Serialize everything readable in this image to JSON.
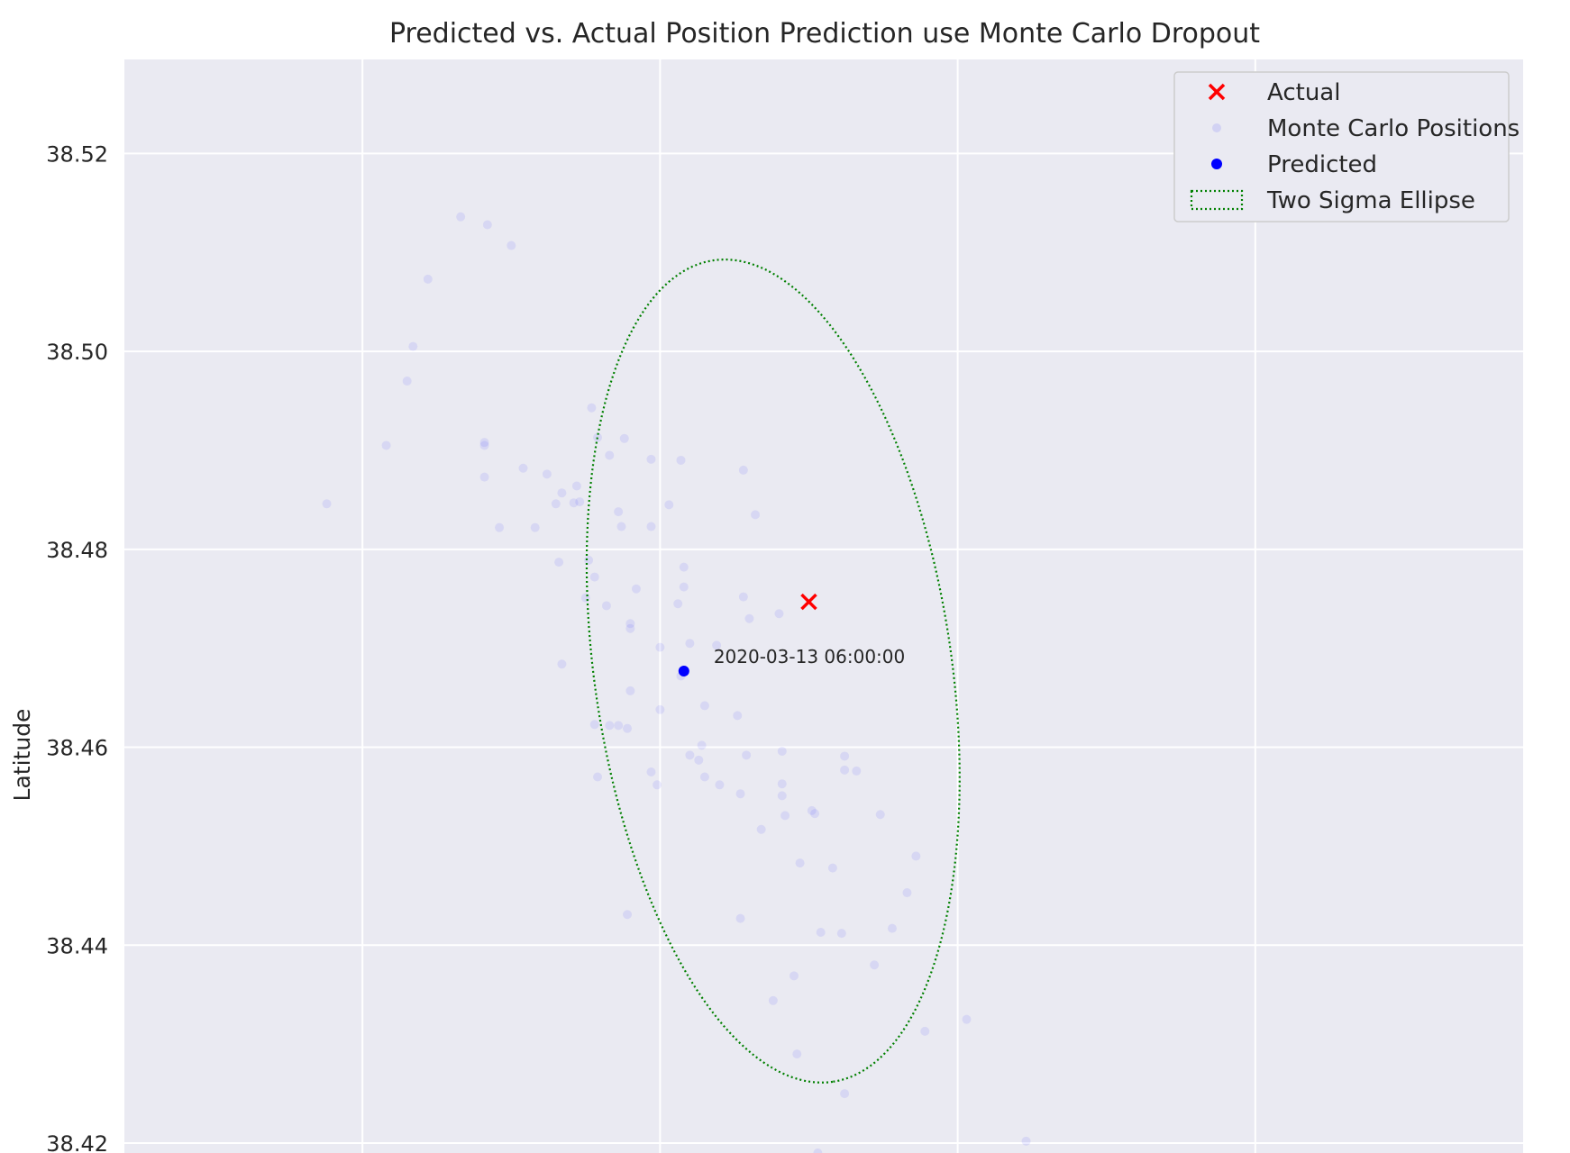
{
  "chart_data": {
    "type": "scatter",
    "title": "Predicted vs. Actual Position Prediction use Monte Carlo Dropout",
    "xlabel": "",
    "ylabel": "Latitude",
    "xlim": [
      -4.0,
      0.7
    ],
    "ylim": [
      38.419,
      38.5295
    ],
    "yticks": [
      38.42,
      38.44,
      38.46,
      38.48,
      38.5,
      38.52
    ],
    "ytick_labels": [
      "38.42",
      "38.44",
      "38.46",
      "38.48",
      "38.50",
      "38.52"
    ],
    "xgrid": [
      -3.2,
      -2.2,
      -1.2,
      -0.2
    ],
    "grid": true,
    "legend_position": "top-right",
    "colors": {
      "background": "#eaeaf2",
      "grid": "#ffffff",
      "actual": "#ff0000",
      "predicted": "#0000ff",
      "monte_carlo": "#0000ff",
      "ellipse": "#008000"
    },
    "series": [
      {
        "name": "Actual",
        "marker": "x",
        "points": [
          [
            -1.7,
            38.4747
          ]
        ]
      },
      {
        "name": "Monte Carlo Positions",
        "marker": "dot-faint",
        "points": [
          [
            -3.32,
            38.4846
          ],
          [
            -3.12,
            38.4905
          ],
          [
            -3.03,
            38.5005
          ],
          [
            -3.05,
            38.497
          ],
          [
            -2.98,
            38.5073
          ],
          [
            -2.87,
            38.5136
          ],
          [
            -2.79,
            38.4908
          ],
          [
            -2.79,
            38.4873
          ],
          [
            -2.79,
            38.4905
          ],
          [
            -2.74,
            38.4822
          ],
          [
            -2.7,
            38.5107
          ],
          [
            -2.66,
            38.4882
          ],
          [
            -2.62,
            38.4822
          ],
          [
            -2.78,
            38.5128
          ],
          [
            -2.58,
            38.4876
          ],
          [
            -2.55,
            38.4846
          ],
          [
            -2.53,
            38.4857
          ],
          [
            -2.49,
            38.4847
          ],
          [
            -2.48,
            38.4864
          ],
          [
            -2.47,
            38.4848
          ],
          [
            -2.45,
            38.4751
          ],
          [
            -2.44,
            38.4789
          ],
          [
            -2.43,
            38.4943
          ],
          [
            -2.42,
            38.4772
          ],
          [
            -2.41,
            38.4913
          ],
          [
            -2.38,
            38.4743
          ],
          [
            -2.37,
            38.4895
          ],
          [
            -2.34,
            38.4838
          ],
          [
            -2.33,
            38.4823
          ],
          [
            -2.32,
            38.4912
          ],
          [
            -2.3,
            38.4725
          ],
          [
            -2.3,
            38.472
          ],
          [
            -2.28,
            38.476
          ],
          [
            -2.23,
            38.4823
          ],
          [
            -2.23,
            38.4891
          ],
          [
            -2.2,
            38.4701
          ],
          [
            -2.17,
            38.4845
          ],
          [
            -2.14,
            38.4745
          ],
          [
            -2.13,
            38.489
          ],
          [
            -2.12,
            38.4762
          ],
          [
            -2.12,
            38.4782
          ],
          [
            -2.1,
            38.4705
          ],
          [
            -2.54,
            38.4787
          ],
          [
            -2.53,
            38.4684
          ],
          [
            -2.42,
            38.4623
          ],
          [
            -2.37,
            38.4622
          ],
          [
            -2.34,
            38.4622
          ],
          [
            -2.3,
            38.4657
          ],
          [
            -2.31,
            38.4619
          ],
          [
            -2.23,
            38.4575
          ],
          [
            -2.21,
            38.4562
          ],
          [
            -2.2,
            38.4638
          ],
          [
            -2.13,
            38.4672
          ],
          [
            -2.1,
            38.4592
          ],
          [
            -2.07,
            38.4587
          ],
          [
            -2.06,
            38.4602
          ],
          [
            -2.05,
            38.4642
          ],
          [
            -2.05,
            38.457
          ],
          [
            -2.01,
            38.4703
          ],
          [
            -2.0,
            38.4562
          ],
          [
            -1.94,
            38.4632
          ],
          [
            -1.93,
            38.4553
          ],
          [
            -1.92,
            38.4752
          ],
          [
            -1.9,
            38.473
          ],
          [
            -1.91,
            38.4592
          ],
          [
            -1.86,
            38.4517
          ],
          [
            -1.92,
            38.488
          ],
          [
            -1.88,
            38.4835
          ],
          [
            -1.8,
            38.4735
          ],
          [
            -1.79,
            38.4596
          ],
          [
            -1.79,
            38.4563
          ],
          [
            -1.79,
            38.4551
          ],
          [
            -1.78,
            38.4531
          ],
          [
            -1.73,
            38.4483
          ],
          [
            -1.69,
            38.4536
          ],
          [
            -1.68,
            38.4533
          ],
          [
            -1.62,
            38.4478
          ],
          [
            -1.58,
            38.4591
          ],
          [
            -1.58,
            38.4577
          ],
          [
            -1.54,
            38.4576
          ],
          [
            -1.46,
            38.4532
          ],
          [
            -1.42,
            38.4417
          ],
          [
            -1.37,
            38.4453
          ],
          [
            -1.34,
            38.449
          ],
          [
            -2.41,
            38.457
          ],
          [
            -2.31,
            38.4431
          ],
          [
            -1.93,
            38.4427
          ],
          [
            -1.82,
            38.4344
          ],
          [
            -1.75,
            38.4369
          ],
          [
            -1.74,
            38.429
          ],
          [
            -1.66,
            38.4413
          ],
          [
            -1.59,
            38.4412
          ],
          [
            -1.48,
            38.438
          ],
          [
            -1.31,
            38.4313
          ],
          [
            -1.17,
            38.4325
          ],
          [
            -1.58,
            38.425
          ],
          [
            -1.67,
            38.419
          ],
          [
            -0.97,
            38.4202
          ]
        ]
      },
      {
        "name": "Predicted",
        "marker": "dot",
        "points": [
          [
            -2.12,
            38.4677
          ]
        ]
      }
    ],
    "ellipse": {
      "name": "Two Sigma Ellipse",
      "center": [
        -1.82,
        38.4677
      ],
      "major_axis_end": [
        -1.62,
        38.4262
      ],
      "minor_axis_end": [
        -2.42,
        38.4677
      ]
    },
    "annotations": [
      {
        "text": "2020-03-13 06:00:00",
        "x": -2.02,
        "y": 38.4685
      }
    ],
    "legend": [
      "Actual",
      "Monte Carlo Positions",
      "Predicted",
      "Two Sigma Ellipse"
    ]
  }
}
